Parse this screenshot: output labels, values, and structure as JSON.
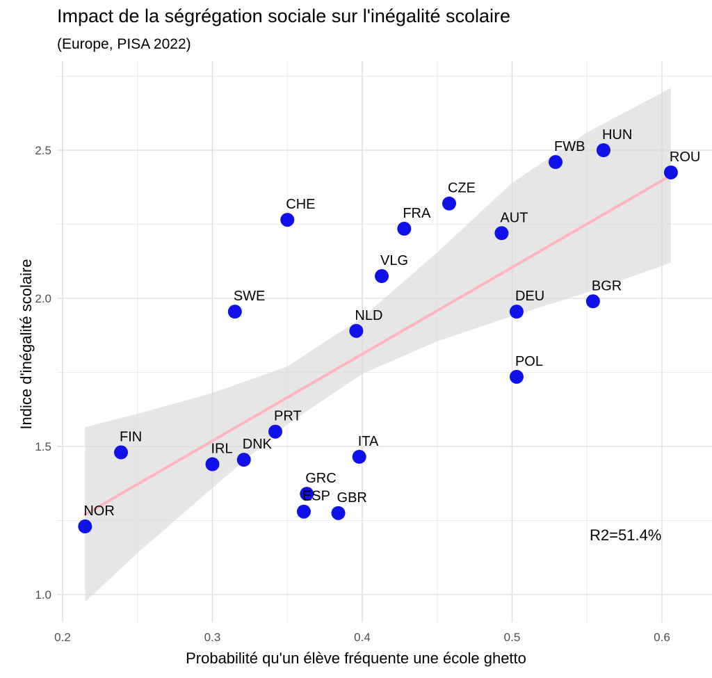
{
  "chart_data": {
    "type": "scatter",
    "title": "Impact de la ségrégation sociale sur l'inégalité scolaire",
    "subtitle": "(Europe, PISA 2022)",
    "xlabel": "Probabilité qu'un élève fréquente une école ghetto",
    "ylabel": "Indice d'inégalité scolaire",
    "xlim": [
      0.2,
      0.62
    ],
    "ylim": [
      0.93,
      2.75
    ],
    "x_ticks": [
      0.2,
      0.3,
      0.4,
      0.5,
      0.6
    ],
    "x_tick_labels": [
      "0.2",
      "0.3",
      "0.4",
      "0.5",
      "0.6"
    ],
    "y_ticks": [
      1.0,
      1.5,
      2.0,
      2.5
    ],
    "y_tick_labels": [
      "1.0",
      "1.5",
      "2.0",
      "2.5"
    ],
    "grid": true,
    "point_color": "#1010e8",
    "fit_line_color": "#ffb6c1",
    "confidence_band_color": "#d9d9d9",
    "points": [
      {
        "label": "NOR",
        "x": 0.215,
        "y": 1.23
      },
      {
        "label": "FIN",
        "x": 0.239,
        "y": 1.48
      },
      {
        "label": "IRL",
        "x": 0.3,
        "y": 1.44
      },
      {
        "label": "SWE",
        "x": 0.315,
        "y": 1.955
      },
      {
        "label": "DNK",
        "x": 0.321,
        "y": 1.455
      },
      {
        "label": "PRT",
        "x": 0.342,
        "y": 1.55
      },
      {
        "label": "CHE",
        "x": 0.35,
        "y": 2.265
      },
      {
        "label": "ESP",
        "x": 0.361,
        "y": 1.28
      },
      {
        "label": "GRC",
        "x": 0.363,
        "y": 1.34
      },
      {
        "label": "GBR",
        "x": 0.384,
        "y": 1.275
      },
      {
        "label": "NLD",
        "x": 0.396,
        "y": 1.89
      },
      {
        "label": "ITA",
        "x": 0.398,
        "y": 1.465
      },
      {
        "label": "VLG",
        "x": 0.413,
        "y": 2.075
      },
      {
        "label": "FRA",
        "x": 0.428,
        "y": 2.235
      },
      {
        "label": "CZE",
        "x": 0.458,
        "y": 2.32
      },
      {
        "label": "AUT",
        "x": 0.493,
        "y": 2.22
      },
      {
        "label": "POL",
        "x": 0.503,
        "y": 1.735
      },
      {
        "label": "DEU",
        "x": 0.503,
        "y": 1.955
      },
      {
        "label": "FWB",
        "x": 0.529,
        "y": 2.46
      },
      {
        "label": "BGR",
        "x": 0.554,
        "y": 1.99
      },
      {
        "label": "HUN",
        "x": 0.561,
        "y": 2.5
      },
      {
        "label": "ROU",
        "x": 0.606,
        "y": 2.425
      }
    ],
    "fit_line": {
      "x": [
        0.215,
        0.606
      ],
      "y": [
        1.27,
        2.415
      ]
    },
    "confidence_band": [
      {
        "x": 0.215,
        "lower": 0.975,
        "upper": 1.565
      },
      {
        "x": 0.25,
        "lower": 1.14,
        "upper": 1.61
      },
      {
        "x": 0.3,
        "lower": 1.36,
        "upper": 1.68
      },
      {
        "x": 0.35,
        "lower": 1.575,
        "upper": 1.77
      },
      {
        "x": 0.4,
        "lower": 1.745,
        "upper": 1.935
      },
      {
        "x": 0.45,
        "lower": 1.855,
        "upper": 2.155
      },
      {
        "x": 0.5,
        "lower": 1.94,
        "upper": 2.39
      },
      {
        "x": 0.55,
        "lower": 2.02,
        "upper": 2.56
      },
      {
        "x": 0.606,
        "lower": 2.12,
        "upper": 2.71
      }
    ],
    "annotation": "R2=51.4%"
  }
}
